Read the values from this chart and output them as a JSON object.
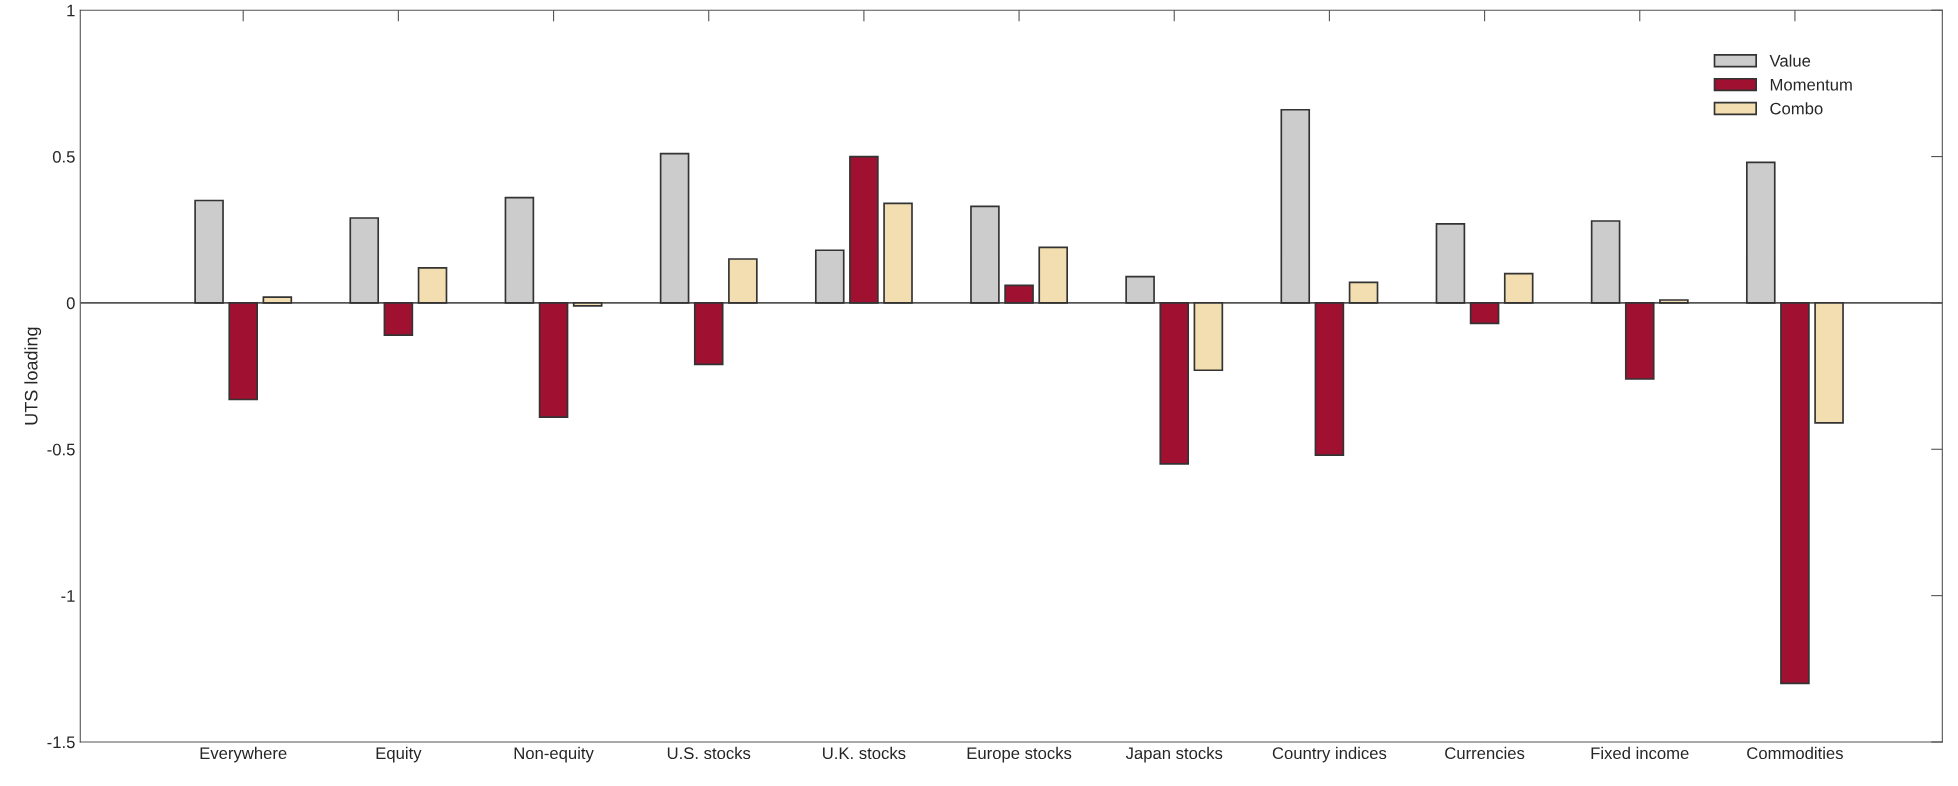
{
  "chart_data": {
    "type": "bar",
    "ylabel": "UTS loading",
    "categories": [
      "Everywhere",
      "Equity",
      "Non-equity",
      "U.S. stocks",
      "U.K. stocks",
      "Europe stocks",
      "Japan stocks",
      "Country indices",
      "Currencies",
      "Fixed income",
      "Commodities"
    ],
    "series": [
      {
        "name": "Value",
        "color": "#cccccc",
        "values": [
          0.35,
          0.29,
          0.36,
          0.51,
          0.18,
          0.33,
          0.09,
          0.66,
          0.27,
          0.28,
          0.48
        ]
      },
      {
        "name": "Momentum",
        "color": "#a01030",
        "values": [
          -0.33,
          -0.11,
          -0.39,
          -0.21,
          0.5,
          0.06,
          -0.55,
          -0.52,
          -0.07,
          -0.26,
          -1.3
        ]
      },
      {
        "name": "Combo",
        "color": "#f2deb0",
        "values": [
          0.02,
          0.12,
          -0.01,
          0.15,
          0.34,
          0.19,
          -0.23,
          0.07,
          0.1,
          0.01,
          -0.41
        ]
      }
    ],
    "ylim": [
      -1.5,
      1
    ],
    "yticks": [
      -1.5,
      -1,
      -0.5,
      0,
      0.5,
      1
    ],
    "ref_lines": [
      {
        "axis": "y",
        "value": 0
      }
    ],
    "legend": "top right",
    "grid": false
  }
}
